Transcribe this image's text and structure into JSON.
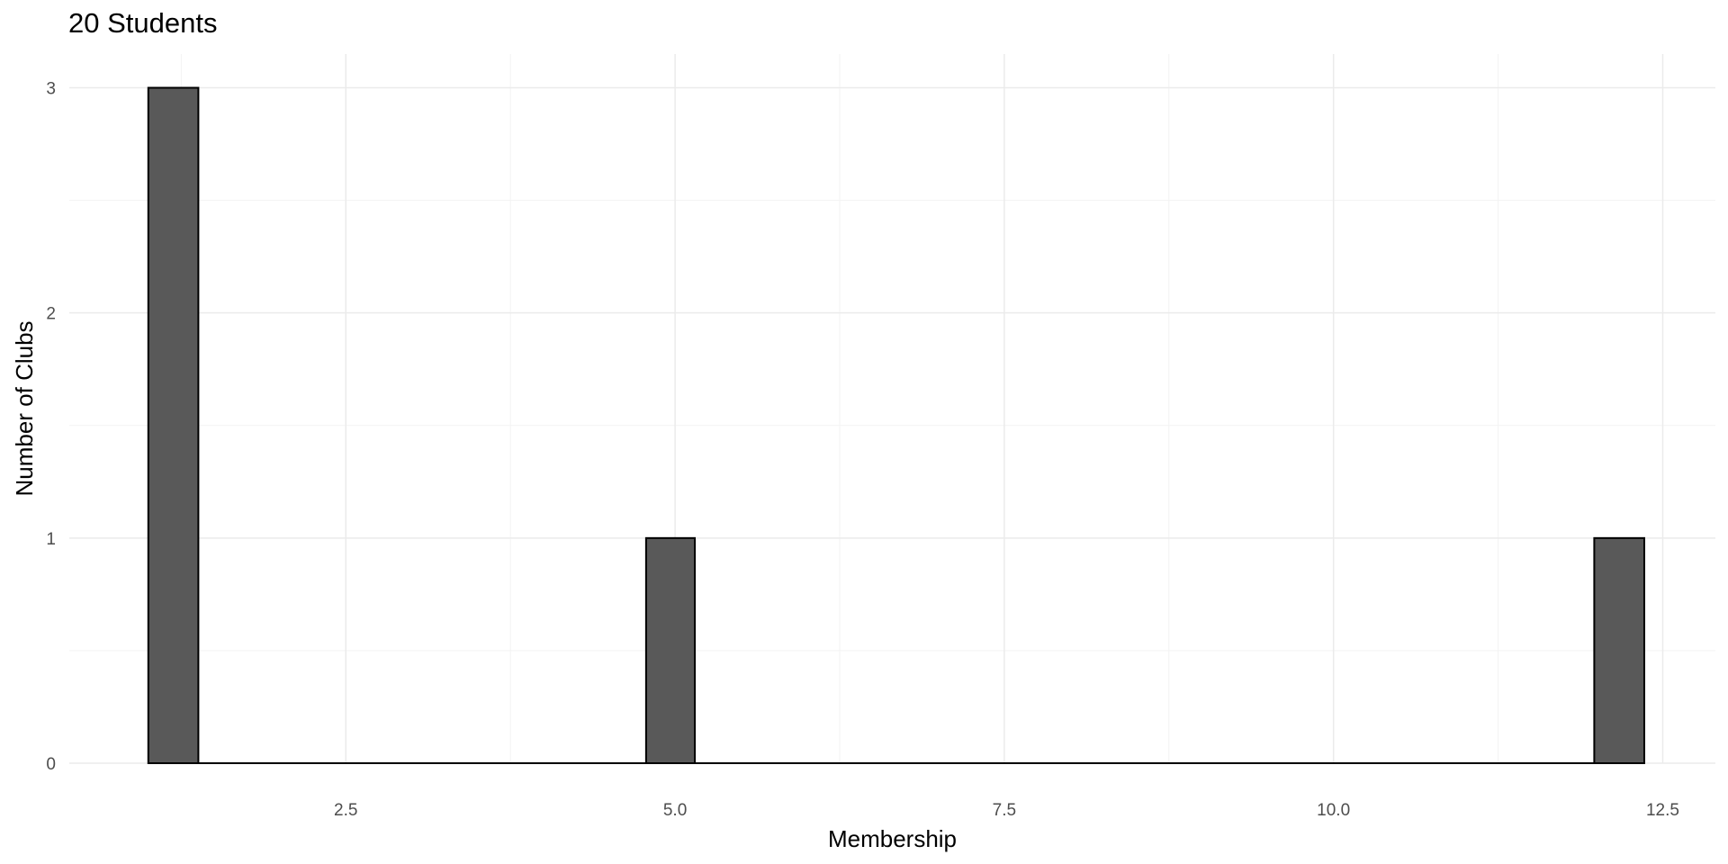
{
  "chart_data": {
    "type": "bar",
    "title": "20 Students",
    "xlabel": "Membership",
    "ylabel": "Number of Clubs",
    "bins": [
      {
        "x0": 1.0,
        "x1": 1.38,
        "count": 3
      },
      {
        "x0": 1.38,
        "x1": 4.78,
        "count": 0
      },
      {
        "x0": 4.78,
        "x1": 5.15,
        "count": 1
      },
      {
        "x0": 5.15,
        "x1": 11.98,
        "count": 0
      },
      {
        "x0": 11.98,
        "x1": 12.36,
        "count": 1
      }
    ],
    "xlim": [
      0.4,
      12.9
    ],
    "ylim": [
      0,
      3.15
    ],
    "x_ticks": [
      2.5,
      5.0,
      7.5,
      10.0,
      12.5
    ],
    "x_tick_labels": [
      "2.5",
      "5.0",
      "7.5",
      "10.0",
      "12.5"
    ],
    "y_ticks": [
      0,
      1,
      2,
      3
    ],
    "y_tick_labels": [
      "0",
      "1",
      "2",
      "3"
    ],
    "grid": true,
    "colors": {
      "bar_fill": "#595959",
      "bar_stroke": "#000000",
      "grid_major": "#ebebeb",
      "grid_minor": "#f3f3f3"
    }
  }
}
